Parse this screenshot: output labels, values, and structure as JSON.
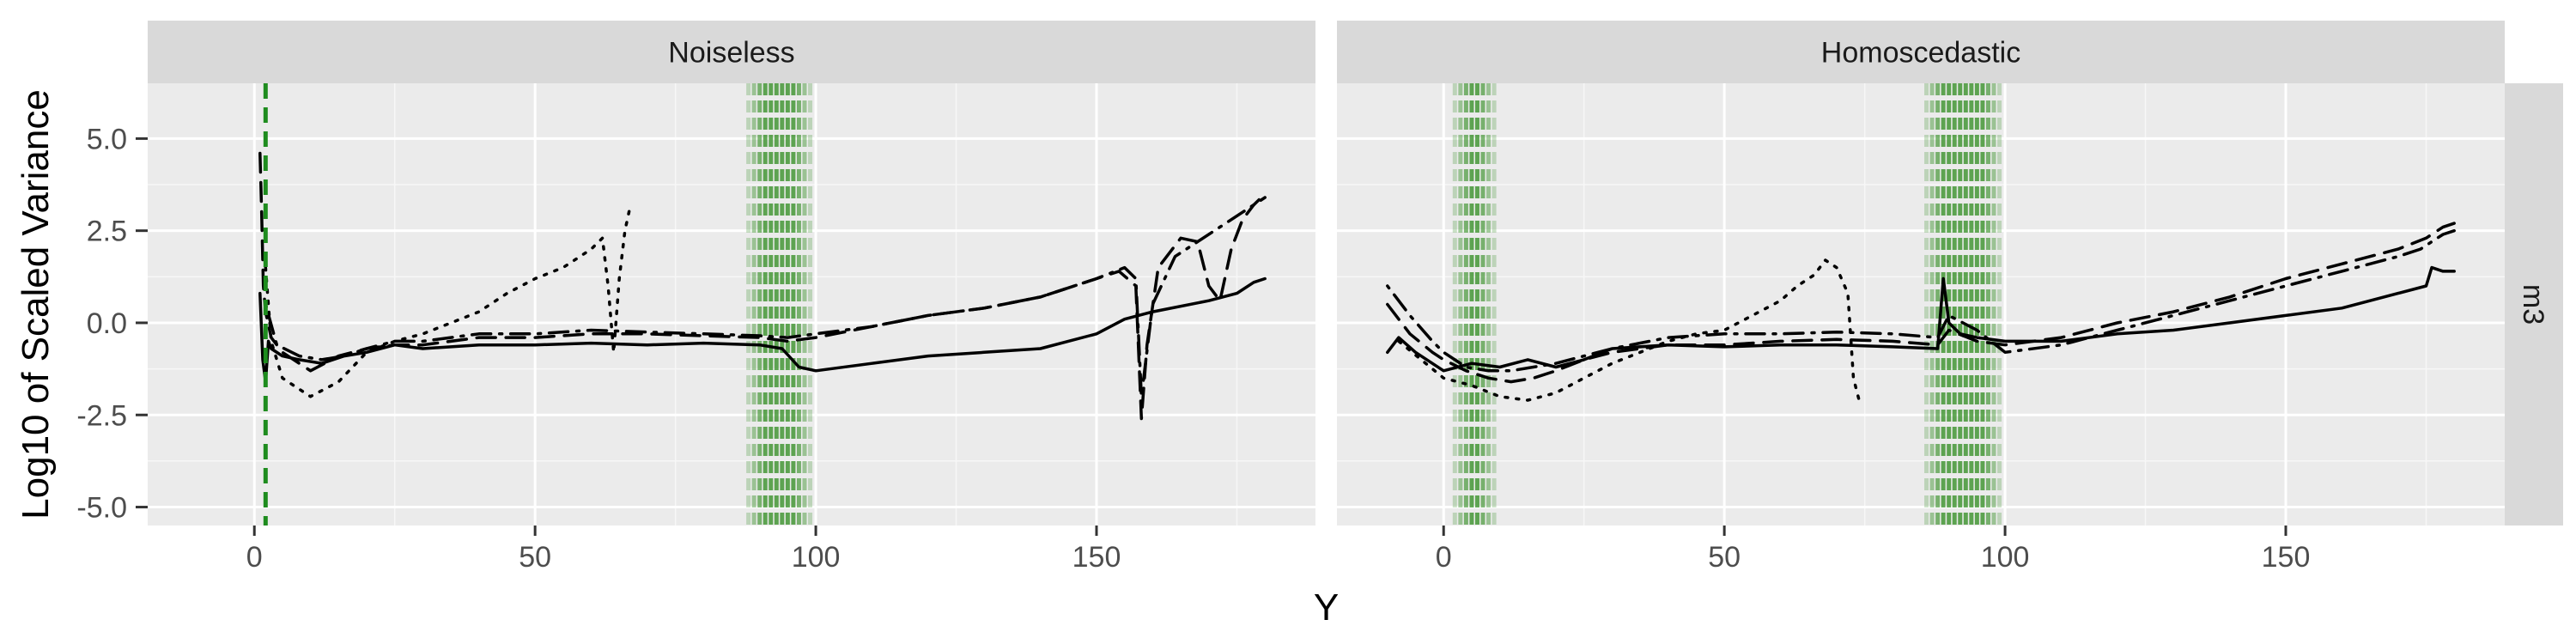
{
  "chart_data": {
    "type": "line",
    "xlabel": "Y",
    "ylabel": "Log10 of Scaled Variance",
    "row_strip": "m3",
    "xlim": [
      -19,
      189
    ],
    "ylim": [
      -5.5,
      6.5
    ],
    "x_ticks": [
      0,
      50,
      100,
      150
    ],
    "x_tick_labels": [
      "0",
      "50",
      "100",
      "150"
    ],
    "y_ticks": [
      5.0,
      2.5,
      0.0,
      -2.5,
      -5.0
    ],
    "y_tick_labels": [
      "5.0",
      "2.5",
      "0.0",
      "-2.5",
      "-5.0"
    ],
    "grid": true,
    "band_color": "#2e8b1e",
    "vline_color": "#1e8c1e",
    "line_color": "#000000",
    "panels": [
      {
        "title": "Noiseless",
        "vertical_lines": [
          2
        ],
        "bands": [
          [
            88,
            99
          ]
        ],
        "series": [
          {
            "style": "solid",
            "points": [
              [
                1,
                0.8
              ],
              [
                1.5,
                -1.0
              ],
              [
                2,
                -1.6
              ],
              [
                2.5,
                -0.5
              ],
              [
                3,
                -0.7
              ],
              [
                5,
                -0.9
              ],
              [
                8,
                -1.0
              ],
              [
                12,
                -1.1
              ],
              [
                16,
                -0.9
              ],
              [
                20,
                -0.8
              ],
              [
                25,
                -0.6
              ],
              [
                30,
                -0.7
              ],
              [
                40,
                -0.6
              ],
              [
                50,
                -0.6
              ],
              [
                60,
                -0.55
              ],
              [
                70,
                -0.6
              ],
              [
                80,
                -0.55
              ],
              [
                90,
                -0.6
              ],
              [
                94,
                -0.7
              ],
              [
                97,
                -1.2
              ],
              [
                100,
                -1.3
              ],
              [
                110,
                -1.1
              ],
              [
                120,
                -0.9
              ],
              [
                130,
                -0.8
              ],
              [
                140,
                -0.7
              ],
              [
                150,
                -0.3
              ],
              [
                155,
                0.1
              ],
              [
                160,
                0.3
              ],
              [
                170,
                0.6
              ],
              [
                175,
                0.8
              ],
              [
                178,
                1.1
              ],
              [
                180,
                1.2
              ]
            ]
          },
          {
            "style": "dashed",
            "points": [
              [
                1,
                4.6
              ],
              [
                1.3,
                3.0
              ],
              [
                1.6,
                1.0
              ],
              [
                2,
                0.3
              ],
              [
                3,
                -0.4
              ],
              [
                5,
                -0.8
              ],
              [
                10,
                -1.3
              ],
              [
                15,
                -0.9
              ],
              [
                20,
                -0.7
              ],
              [
                25,
                -0.6
              ],
              [
                30,
                -0.6
              ],
              [
                40,
                -0.4
              ],
              [
                50,
                -0.4
              ],
              [
                60,
                -0.3
              ],
              [
                70,
                -0.3
              ],
              [
                80,
                -0.35
              ],
              [
                90,
                -0.4
              ],
              [
                95,
                -0.5
              ],
              [
                100,
                -0.4
              ],
              [
                110,
                -0.1
              ],
              [
                120,
                0.2
              ],
              [
                130,
                0.4
              ],
              [
                140,
                0.7
              ],
              [
                148,
                1.1
              ],
              [
                154,
                1.4
              ],
              [
                157,
                1.0
              ],
              [
                158,
                -2.6
              ],
              [
                159,
                -0.6
              ],
              [
                161,
                1.5
              ],
              [
                165,
                2.3
              ],
              [
                168,
                2.2
              ],
              [
                170,
                1.0
              ],
              [
                172,
                0.6
              ],
              [
                174,
                2.0
              ],
              [
                176,
                2.8
              ],
              [
                178,
                3.2
              ],
              [
                180,
                3.5
              ]
            ]
          },
          {
            "style": "dotted",
            "points": [
              [
                2,
                1.5
              ],
              [
                3,
                -0.5
              ],
              [
                5,
                -1.5
              ],
              [
                8,
                -1.8
              ],
              [
                10,
                -2.0
              ],
              [
                15,
                -1.6
              ],
              [
                20,
                -0.8
              ],
              [
                25,
                -0.5
              ],
              [
                30,
                -0.3
              ],
              [
                35,
                0.0
              ],
              [
                40,
                0.3
              ],
              [
                45,
                0.8
              ],
              [
                50,
                1.2
              ],
              [
                55,
                1.5
              ],
              [
                58,
                1.8
              ],
              [
                60,
                2.0
              ],
              [
                62,
                2.3
              ],
              [
                63,
                1.0
              ],
              [
                64,
                -0.8
              ],
              [
                65,
                1.2
              ],
              [
                66,
                2.5
              ],
              [
                67,
                3.2
              ]
            ]
          },
          {
            "style": "dotdash",
            "points": [
              [
                2,
                0.5
              ],
              [
                4,
                -0.6
              ],
              [
                8,
                -0.9
              ],
              [
                12,
                -1.0
              ],
              [
                16,
                -0.9
              ],
              [
                20,
                -0.7
              ],
              [
                25,
                -0.5
              ],
              [
                30,
                -0.5
              ],
              [
                40,
                -0.3
              ],
              [
                50,
                -0.3
              ],
              [
                60,
                -0.2
              ],
              [
                70,
                -0.25
              ],
              [
                80,
                -0.3
              ],
              [
                90,
                -0.35
              ],
              [
                95,
                -0.4
              ],
              [
                100,
                -0.3
              ],
              [
                110,
                -0.1
              ],
              [
                120,
                0.2
              ],
              [
                130,
                0.4
              ],
              [
                140,
                0.7
              ],
              [
                150,
                1.2
              ],
              [
                155,
                1.5
              ],
              [
                157,
                1.2
              ],
              [
                158,
                -2.0
              ],
              [
                160,
                0.5
              ],
              [
                164,
                1.8
              ],
              [
                168,
                2.2
              ],
              [
                172,
                2.6
              ],
              [
                176,
                3.0
              ],
              [
                180,
                3.4
              ]
            ]
          }
        ]
      },
      {
        "title": "Homoscedastic",
        "vertical_lines": [],
        "bands": [
          [
            2,
            9
          ],
          [
            86,
            99
          ]
        ],
        "series": [
          {
            "style": "solid",
            "points": [
              [
                -10,
                -0.8
              ],
              [
                -8,
                -0.4
              ],
              [
                -5,
                -0.8
              ],
              [
                0,
                -1.3
              ],
              [
                5,
                -1.1
              ],
              [
                10,
                -1.2
              ],
              [
                15,
                -1.0
              ],
              [
                20,
                -1.2
              ],
              [
                25,
                -1.0
              ],
              [
                30,
                -0.7
              ],
              [
                40,
                -0.6
              ],
              [
                50,
                -0.65
              ],
              [
                60,
                -0.6
              ],
              [
                70,
                -0.6
              ],
              [
                80,
                -0.65
              ],
              [
                88,
                -0.7
              ],
              [
                89,
                1.2
              ],
              [
                90,
                0.0
              ],
              [
                92,
                -0.3
              ],
              [
                95,
                -0.4
              ],
              [
                100,
                -0.5
              ],
              [
                110,
                -0.5
              ],
              [
                120,
                -0.3
              ],
              [
                130,
                -0.2
              ],
              [
                140,
                0.0
              ],
              [
                150,
                0.2
              ],
              [
                160,
                0.4
              ],
              [
                170,
                0.8
              ],
              [
                175,
                1.0
              ],
              [
                176,
                1.5
              ],
              [
                178,
                1.4
              ],
              [
                180,
                1.4
              ]
            ]
          },
          {
            "style": "dashed",
            "points": [
              [
                -10,
                0.5
              ],
              [
                -6,
                -0.3
              ],
              [
                -2,
                -0.8
              ],
              [
                0,
                -1.0
              ],
              [
                4,
                -1.3
              ],
              [
                8,
                -1.5
              ],
              [
                12,
                -1.6
              ],
              [
                16,
                -1.5
              ],
              [
                20,
                -1.3
              ],
              [
                25,
                -1.0
              ],
              [
                30,
                -0.8
              ],
              [
                40,
                -0.6
              ],
              [
                50,
                -0.6
              ],
              [
                60,
                -0.5
              ],
              [
                70,
                -0.45
              ],
              [
                80,
                -0.5
              ],
              [
                88,
                -0.6
              ],
              [
                90,
                -0.2
              ],
              [
                95,
                -0.5
              ],
              [
                100,
                -0.6
              ],
              [
                110,
                -0.4
              ],
              [
                120,
                0.0
              ],
              [
                130,
                0.3
              ],
              [
                140,
                0.7
              ],
              [
                150,
                1.2
              ],
              [
                160,
                1.6
              ],
              [
                165,
                1.8
              ],
              [
                170,
                2.0
              ],
              [
                175,
                2.3
              ],
              [
                178,
                2.6
              ],
              [
                180,
                2.7
              ]
            ]
          },
          {
            "style": "dotted",
            "points": [
              [
                -8,
                -0.5
              ],
              [
                -4,
                -1.0
              ],
              [
                0,
                -1.5
              ],
              [
                5,
                -1.7
              ],
              [
                10,
                -2.0
              ],
              [
                15,
                -2.1
              ],
              [
                20,
                -1.9
              ],
              [
                25,
                -1.5
              ],
              [
                30,
                -1.1
              ],
              [
                35,
                -0.8
              ],
              [
                40,
                -0.5
              ],
              [
                45,
                -0.3
              ],
              [
                50,
                -0.2
              ],
              [
                55,
                0.2
              ],
              [
                60,
                0.6
              ],
              [
                63,
                1.0
              ],
              [
                66,
                1.3
              ],
              [
                68,
                1.7
              ],
              [
                70,
                1.5
              ],
              [
                72,
                0.8
              ],
              [
                73,
                -1.5
              ],
              [
                74,
                -2.1
              ]
            ]
          },
          {
            "style": "dotdash",
            "points": [
              [
                -10,
                1.0
              ],
              [
                -6,
                0.2
              ],
              [
                -2,
                -0.5
              ],
              [
                0,
                -0.8
              ],
              [
                4,
                -1.2
              ],
              [
                8,
                -1.3
              ],
              [
                12,
                -1.3
              ],
              [
                16,
                -1.2
              ],
              [
                20,
                -1.1
              ],
              [
                25,
                -0.9
              ],
              [
                30,
                -0.7
              ],
              [
                40,
                -0.4
              ],
              [
                50,
                -0.3
              ],
              [
                60,
                -0.3
              ],
              [
                70,
                -0.25
              ],
              [
                80,
                -0.3
              ],
              [
                88,
                -0.4
              ],
              [
                90,
                0.2
              ],
              [
                95,
                -0.2
              ],
              [
                100,
                -0.8
              ],
              [
                110,
                -0.6
              ],
              [
                120,
                -0.2
              ],
              [
                130,
                0.2
              ],
              [
                140,
                0.6
              ],
              [
                150,
                1.0
              ],
              [
                160,
                1.4
              ],
              [
                165,
                1.6
              ],
              [
                170,
                1.8
              ],
              [
                174,
                2.0
              ],
              [
                176,
                2.2
              ],
              [
                178,
                2.4
              ],
              [
                180,
                2.5
              ]
            ]
          }
        ]
      }
    ]
  }
}
